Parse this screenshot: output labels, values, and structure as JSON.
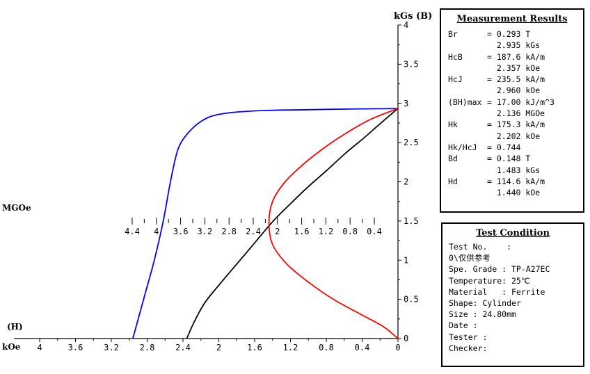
{
  "chart_data": {
    "type": "line",
    "x_axis_top_label": "kGs (B)",
    "y_axis_left_label": "MGOe",
    "h_label": "(H)",
    "h_unit": "kOe",
    "h_axis": {
      "ticks": [
        "4",
        "3.6",
        "3.2",
        "2.8",
        "2.4",
        "2",
        "1.6",
        "1.2",
        "0.8",
        "0.4",
        "0"
      ],
      "range": [
        4,
        0
      ]
    },
    "b_axis": {
      "ticks": [
        "0",
        "0.5",
        "1",
        "1.5",
        "2",
        "2.5",
        "3",
        "3.5",
        "4"
      ],
      "range": [
        0,
        4
      ]
    },
    "energy_axis": {
      "ticks": [
        "4.4",
        "4",
        "3.6",
        "3.2",
        "2.8",
        "2.4",
        "2",
        "1.6",
        "1.2",
        "0.8",
        "0.4"
      ],
      "range": [
        4.4,
        0.4
      ]
    },
    "series": [
      {
        "color": "#0000ff",
        "points": [
          [
            2.96,
            0
          ],
          [
            2.84,
            0.5
          ],
          [
            2.72,
            1.0
          ],
          [
            2.62,
            1.5
          ],
          [
            2.54,
            2.0
          ],
          [
            2.46,
            2.4
          ],
          [
            2.36,
            2.6
          ],
          [
            2.2,
            2.77
          ],
          [
            2.0,
            2.86
          ],
          [
            1.6,
            2.905
          ],
          [
            1.0,
            2.92
          ],
          [
            0.4,
            2.93
          ],
          [
            0,
            2.935
          ]
        ]
      },
      {
        "color": "#000000",
        "points": [
          [
            2.357,
            0
          ],
          [
            2.28,
            0.2
          ],
          [
            2.16,
            0.45
          ],
          [
            2.0,
            0.68
          ],
          [
            1.8,
            0.95
          ],
          [
            1.6,
            1.22
          ],
          [
            1.4,
            1.49
          ],
          [
            1.2,
            1.72
          ],
          [
            1.0,
            1.94
          ],
          [
            0.8,
            2.14
          ],
          [
            0.6,
            2.35
          ],
          [
            0.4,
            2.54
          ],
          [
            0.2,
            2.74
          ],
          [
            0,
            2.935
          ]
        ]
      },
      {
        "color": "#ff0000",
        "points": [
          [
            0,
            0
          ],
          [
            0.16,
            0.15
          ],
          [
            0.4,
            0.3
          ],
          [
            0.72,
            0.5
          ],
          [
            1.0,
            0.72
          ],
          [
            1.24,
            0.95
          ],
          [
            1.4,
            1.2
          ],
          [
            1.44,
            1.48
          ],
          [
            1.4,
            1.75
          ],
          [
            1.26,
            2.0
          ],
          [
            1.06,
            2.22
          ],
          [
            0.84,
            2.42
          ],
          [
            0.58,
            2.62
          ],
          [
            0.3,
            2.8
          ],
          [
            0,
            2.935
          ]
        ]
      }
    ]
  },
  "results": {
    "title": "Measurement Results",
    "rows": [
      {
        "label": "Br",
        "value": "= 0.293 T"
      },
      {
        "label": "",
        "value": "  2.935 kGs"
      },
      {
        "label": "HcB",
        "value": "= 187.6 kA/m"
      },
      {
        "label": "",
        "value": "  2.357 kOe"
      },
      {
        "label": "HcJ",
        "value": "= 235.5 kA/m"
      },
      {
        "label": "",
        "value": "  2.960 kOe"
      },
      {
        "label": "(BH)max",
        "value": "= 17.00 kJ/m^3"
      },
      {
        "label": "",
        "value": "  2.136 MGOe"
      },
      {
        "label": "Hk",
        "value": "= 175.3 kA/m"
      },
      {
        "label": "",
        "value": "  2.202 kOe"
      },
      {
        "label": "Hk/HcJ",
        "value": "= 0.744"
      },
      {
        "label": "Bd",
        "value": "= 0.148 T"
      },
      {
        "label": "",
        "value": "  1.483 kGs"
      },
      {
        "label": "Hd",
        "value": "= 114.6 kA/m"
      },
      {
        "label": "",
        "value": "  1.440 kOe"
      }
    ]
  },
  "condition": {
    "title": "Test Condition",
    "rows": [
      "Test No.    :",
      "0\\仅供参考",
      "Spe. Grade : TP-A27EC",
      "Temperature: 25℃",
      "Material   : Ferrite",
      "Shape: Cylinder",
      "Size : 24.80mm",
      "Date :",
      "Tester :",
      "Checker:"
    ]
  }
}
